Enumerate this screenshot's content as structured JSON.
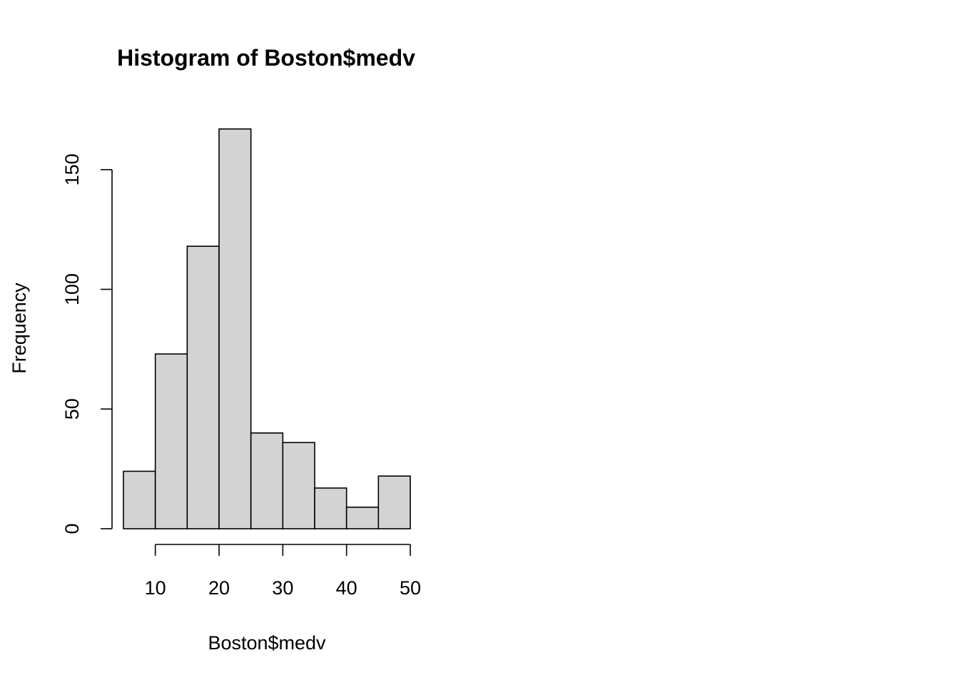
{
  "chart_data": {
    "type": "bar",
    "title": "Histogram of Boston$medv",
    "xlabel": "Boston$medv",
    "ylabel": "Frequency",
    "bins": [
      {
        "start": 5,
        "end": 10,
        "count": 24
      },
      {
        "start": 10,
        "end": 15,
        "count": 73
      },
      {
        "start": 15,
        "end": 20,
        "count": 118
      },
      {
        "start": 20,
        "end": 25,
        "count": 167
      },
      {
        "start": 25,
        "end": 30,
        "count": 40
      },
      {
        "start": 30,
        "end": 35,
        "count": 36
      },
      {
        "start": 35,
        "end": 40,
        "count": 17
      },
      {
        "start": 40,
        "end": 45,
        "count": 9
      },
      {
        "start": 45,
        "end": 50,
        "count": 22
      }
    ],
    "xlim": [
      5,
      50
    ],
    "ylim": [
      0,
      167
    ],
    "x_ticks": [
      10,
      20,
      30,
      40,
      50
    ],
    "y_ticks": [
      0,
      50,
      100,
      150
    ],
    "grid": false,
    "bar_fill": "#d3d3d3",
    "bar_stroke": "#000000"
  }
}
